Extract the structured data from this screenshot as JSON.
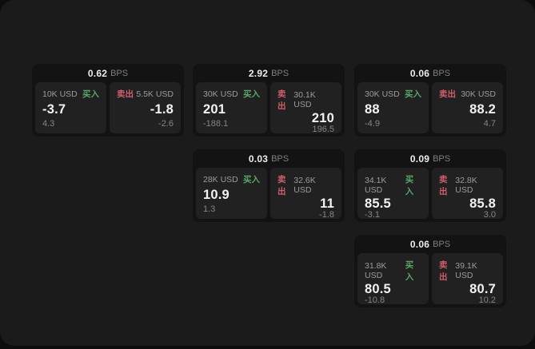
{
  "panel": {
    "background": "#1b1b1b",
    "page_background": "#0d0d0d"
  },
  "colors": {
    "card_bg": "#131313",
    "tile_bg": "#212121",
    "buy_accent": "#58a768",
    "sell_accent": "#d05e6c",
    "value_text": "#f3f3f3",
    "muted_text": "#858585"
  },
  "labels": {
    "bps": "BPS",
    "buy": "买入",
    "sell": "卖出"
  },
  "cards": [
    {
      "bps": "0.62",
      "buy": {
        "amount": "10K USD",
        "value": "-3.7",
        "delta": "4.3"
      },
      "sell": {
        "amount": "5.5K USD",
        "value": "-1.8",
        "delta": "-2.6"
      }
    },
    {
      "bps": "2.92",
      "buy": {
        "amount": "30K USD",
        "value": "201",
        "delta": "-188.1"
      },
      "sell": {
        "amount": "30.1K USD",
        "value": "210",
        "delta": "196.5"
      }
    },
    {
      "bps": "0.06",
      "buy": {
        "amount": "30K USD",
        "value": "88",
        "delta": "-4.9"
      },
      "sell": {
        "amount": "30K USD",
        "value": "88.2",
        "delta": "4.7"
      }
    },
    {
      "bps": "0.03",
      "buy": {
        "amount": "28K USD",
        "value": "10.9",
        "delta": "1.3"
      },
      "sell": {
        "amount": "32.6K USD",
        "value": "11",
        "delta": "-1.8"
      }
    },
    {
      "bps": "0.09",
      "buy": {
        "amount": "34.1K USD",
        "value": "85.5",
        "delta": "-3.1"
      },
      "sell": {
        "amount": "32.8K USD",
        "value": "85.8",
        "delta": "3.0"
      }
    },
    {
      "bps": "0.06",
      "buy": {
        "amount": "31.8K USD",
        "value": "80.5",
        "delta": "-10.8"
      },
      "sell": {
        "amount": "39.1K USD",
        "value": "80.7",
        "delta": "10.2"
      }
    }
  ]
}
